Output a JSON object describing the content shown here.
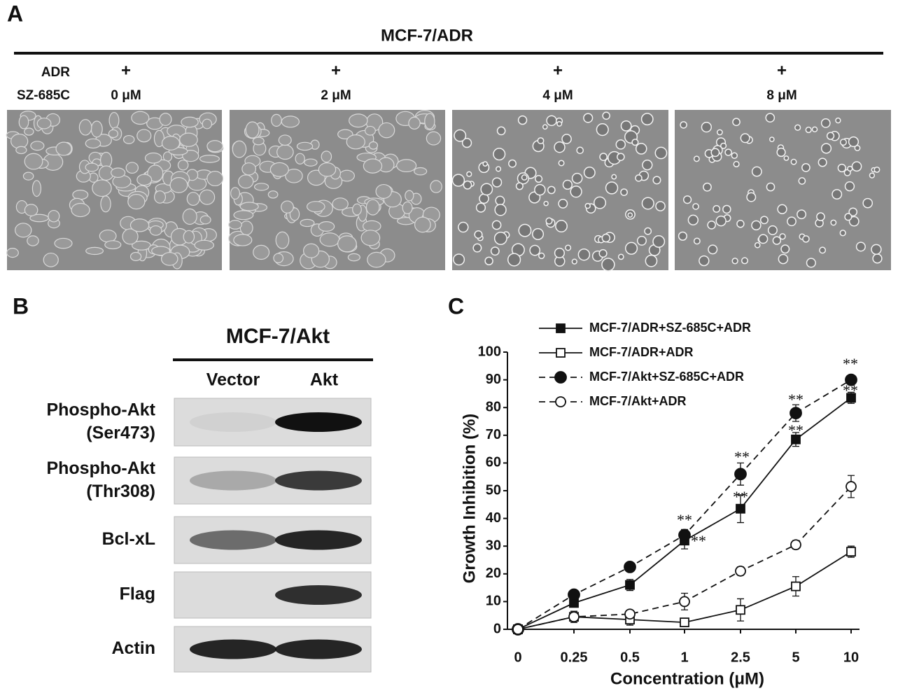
{
  "panel_a": {
    "label": "A",
    "title": "MCF-7/ADR",
    "row_labels": [
      "ADR",
      "SZ-685C"
    ],
    "conditions": [
      {
        "adr": "+",
        "dose": "0 μM"
      },
      {
        "adr": "+",
        "dose": "2 μM"
      },
      {
        "adr": "+",
        "dose": "4 μM"
      },
      {
        "adr": "+",
        "dose": "8 μM"
      }
    ]
  },
  "panel_b": {
    "label": "B",
    "title": "MCF-7/Akt",
    "lanes": [
      "Vector",
      "Akt"
    ],
    "blots": [
      [
        "Phospho-Akt",
        "(Ser473)"
      ],
      [
        "Phospho-Akt",
        "(Thr308)"
      ],
      [
        "Bcl-xL"
      ],
      [
        "Flag"
      ],
      [
        "Actin"
      ]
    ]
  },
  "chart_data": {
    "type": "line",
    "label": "C",
    "xlabel": "Concentration (μM)",
    "ylabel": "Growth Inhibition (%)",
    "categories": [
      "0",
      "0.25",
      "0.5",
      "1",
      "2.5",
      "5",
      "10"
    ],
    "ylim": [
      0,
      100
    ],
    "yticks": [
      0,
      10,
      20,
      30,
      40,
      50,
      60,
      70,
      80,
      90,
      100
    ],
    "series": [
      {
        "name": "MCF-7/ADR+SZ-685C+ADR",
        "color": "#111111",
        "marker": "square",
        "filled": true,
        "dashed": false,
        "values": [
          0,
          9.5,
          16,
          32,
          43.5,
          68.5,
          83.5
        ],
        "errors": [
          1,
          1.5,
          2,
          3,
          5,
          2.5,
          2
        ]
      },
      {
        "name": "MCF-7/ADR+ADR",
        "color": "#111111",
        "marker": "square",
        "filled": false,
        "dashed": false,
        "values": [
          0,
          4.5,
          3.5,
          2.5,
          7,
          15.5,
          28
        ],
        "errors": [
          1,
          2,
          2,
          1,
          4,
          3.5,
          2
        ]
      },
      {
        "name": "MCF-7/Akt+SZ-685C+ADR",
        "color": "#111111",
        "marker": "circle",
        "filled": true,
        "dashed": true,
        "values": [
          0,
          12.5,
          22.5,
          34,
          56,
          78,
          90
        ],
        "errors": [
          1,
          1,
          1.5,
          2,
          4,
          3,
          1.5
        ]
      },
      {
        "name": "MCF-7/Akt+ADR",
        "color": "#111111",
        "marker": "circle",
        "filled": false,
        "dashed": true,
        "values": [
          0,
          4.5,
          5.5,
          10,
          21,
          30.5,
          51.5
        ],
        "errors": [
          1,
          2,
          1,
          3,
          1.5,
          1.5,
          4
        ]
      }
    ],
    "annotations": [
      "*",
      "*",
      "**",
      "**",
      "**",
      "**",
      "**",
      "**",
      "**",
      "**"
    ]
  }
}
